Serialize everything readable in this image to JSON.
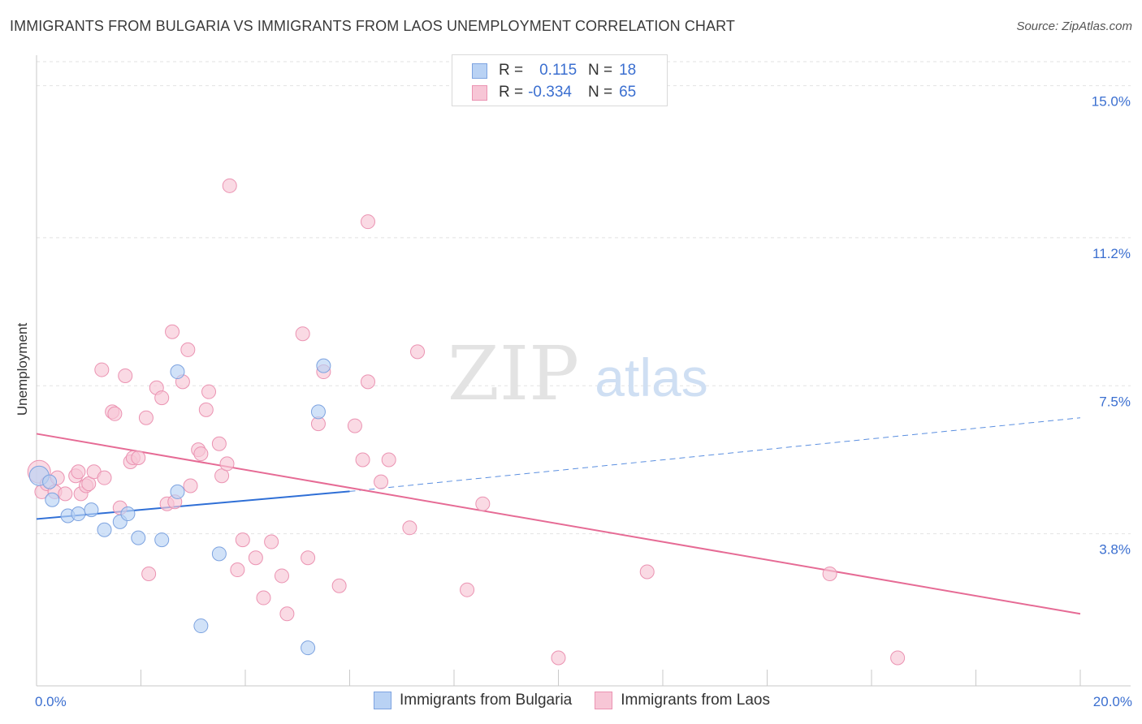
{
  "title": "IMMIGRANTS FROM BULGARIA VS IMMIGRANTS FROM LAOS UNEMPLOYMENT CORRELATION CHART",
  "source": "Source: ZipAtlas.com",
  "watermark": {
    "zip": "ZIP",
    "atlas": "atlas"
  },
  "legend": {
    "r_label": "R =",
    "n_label": "N =",
    "rows": [
      {
        "r": "0.115",
        "n": "18",
        "color": "#b9d2f4",
        "border": "#7da3e0"
      },
      {
        "r": "-0.334",
        "n": "65",
        "color": "#f7c6d6",
        "border": "#eb93b2"
      }
    ]
  },
  "bottom_legend": [
    "Immigrants from Bulgaria",
    "Immigrants from Laos"
  ],
  "chart_data": {
    "type": "scatter",
    "title": "IMMIGRANTS FROM BULGARIA VS IMMIGRANTS FROM LAOS UNEMPLOYMENT CORRELATION CHART",
    "xlabel": "",
    "ylabel": "Unemployment",
    "xlim": [
      0,
      20
    ],
    "ylim": [
      0,
      15.6
    ],
    "x_tick_labels": [
      "0.0%",
      "20.0%"
    ],
    "y_ticks": [
      3.8,
      7.5,
      11.2,
      15.0
    ],
    "y_tick_labels": [
      "3.8%",
      "7.5%",
      "11.2%",
      "15.0%"
    ],
    "grid": true,
    "series": [
      {
        "name": "Immigrants from Bulgaria",
        "color": "#7da3e0",
        "fill": "#b9d2f4",
        "points": [
          [
            0.3,
            4.65
          ],
          [
            0.6,
            4.25
          ],
          [
            0.8,
            4.3
          ],
          [
            1.05,
            4.4
          ],
          [
            1.3,
            3.9
          ],
          [
            1.6,
            4.1
          ],
          [
            1.75,
            4.3
          ],
          [
            1.95,
            3.7
          ],
          [
            2.4,
            3.65
          ],
          [
            2.7,
            4.85
          ],
          [
            2.7,
            7.85
          ],
          [
            3.5,
            3.3
          ],
          [
            3.15,
            1.5
          ],
          [
            5.2,
            0.95
          ],
          [
            5.4,
            6.85
          ],
          [
            5.5,
            8.0
          ],
          [
            0.05,
            5.25
          ],
          [
            0.25,
            5.1
          ]
        ],
        "trend": {
          "x0": 0,
          "y0": 4.17,
          "x1": 6.0,
          "y1": 4.86,
          "dash_to_x": 20,
          "dash_to_y": 6.7
        }
      },
      {
        "name": "Immigrants from Laos",
        "color": "#eb93b2",
        "fill": "#f7c6d6",
        "points": [
          [
            0.05,
            5.35
          ],
          [
            0.1,
            4.85
          ],
          [
            0.2,
            5.05
          ],
          [
            0.35,
            4.85
          ],
          [
            0.4,
            5.2
          ],
          [
            0.55,
            4.8
          ],
          [
            0.75,
            5.25
          ],
          [
            0.8,
            5.35
          ],
          [
            0.85,
            4.8
          ],
          [
            0.95,
            5.0
          ],
          [
            1.0,
            5.05
          ],
          [
            1.1,
            5.35
          ],
          [
            1.25,
            7.9
          ],
          [
            1.3,
            5.2
          ],
          [
            1.45,
            6.85
          ],
          [
            1.5,
            6.8
          ],
          [
            1.6,
            4.45
          ],
          [
            1.7,
            7.75
          ],
          [
            1.8,
            5.6
          ],
          [
            1.85,
            5.7
          ],
          [
            1.95,
            5.7
          ],
          [
            2.1,
            6.7
          ],
          [
            2.15,
            2.8
          ],
          [
            2.3,
            7.45
          ],
          [
            2.4,
            7.2
          ],
          [
            2.5,
            4.55
          ],
          [
            2.6,
            8.85
          ],
          [
            2.65,
            4.6
          ],
          [
            2.8,
            7.6
          ],
          [
            2.9,
            8.4
          ],
          [
            2.95,
            5.0
          ],
          [
            3.1,
            5.9
          ],
          [
            3.15,
            5.8
          ],
          [
            3.25,
            6.9
          ],
          [
            3.3,
            7.35
          ],
          [
            3.5,
            6.05
          ],
          [
            3.55,
            5.25
          ],
          [
            3.65,
            5.55
          ],
          [
            3.7,
            12.5
          ],
          [
            3.85,
            2.9
          ],
          [
            3.95,
            3.65
          ],
          [
            4.2,
            3.2
          ],
          [
            4.35,
            2.2
          ],
          [
            4.5,
            3.6
          ],
          [
            4.7,
            2.75
          ],
          [
            4.8,
            1.8
          ],
          [
            5.1,
            8.8
          ],
          [
            5.2,
            3.2
          ],
          [
            5.4,
            6.55
          ],
          [
            5.5,
            7.85
          ],
          [
            5.8,
            2.5
          ],
          [
            6.1,
            6.5
          ],
          [
            6.25,
            5.65
          ],
          [
            6.35,
            7.6
          ],
          [
            6.35,
            11.6
          ],
          [
            6.6,
            5.1
          ],
          [
            6.75,
            5.65
          ],
          [
            7.15,
            3.95
          ],
          [
            7.3,
            8.35
          ],
          [
            8.25,
            2.4
          ],
          [
            8.55,
            4.55
          ],
          [
            10.0,
            0.7
          ],
          [
            11.7,
            2.85
          ],
          [
            15.2,
            2.8
          ],
          [
            16.5,
            0.7
          ]
        ],
        "trend": {
          "x0": 0,
          "y0": 6.3,
          "x1": 20,
          "y1": 1.8
        }
      }
    ]
  }
}
